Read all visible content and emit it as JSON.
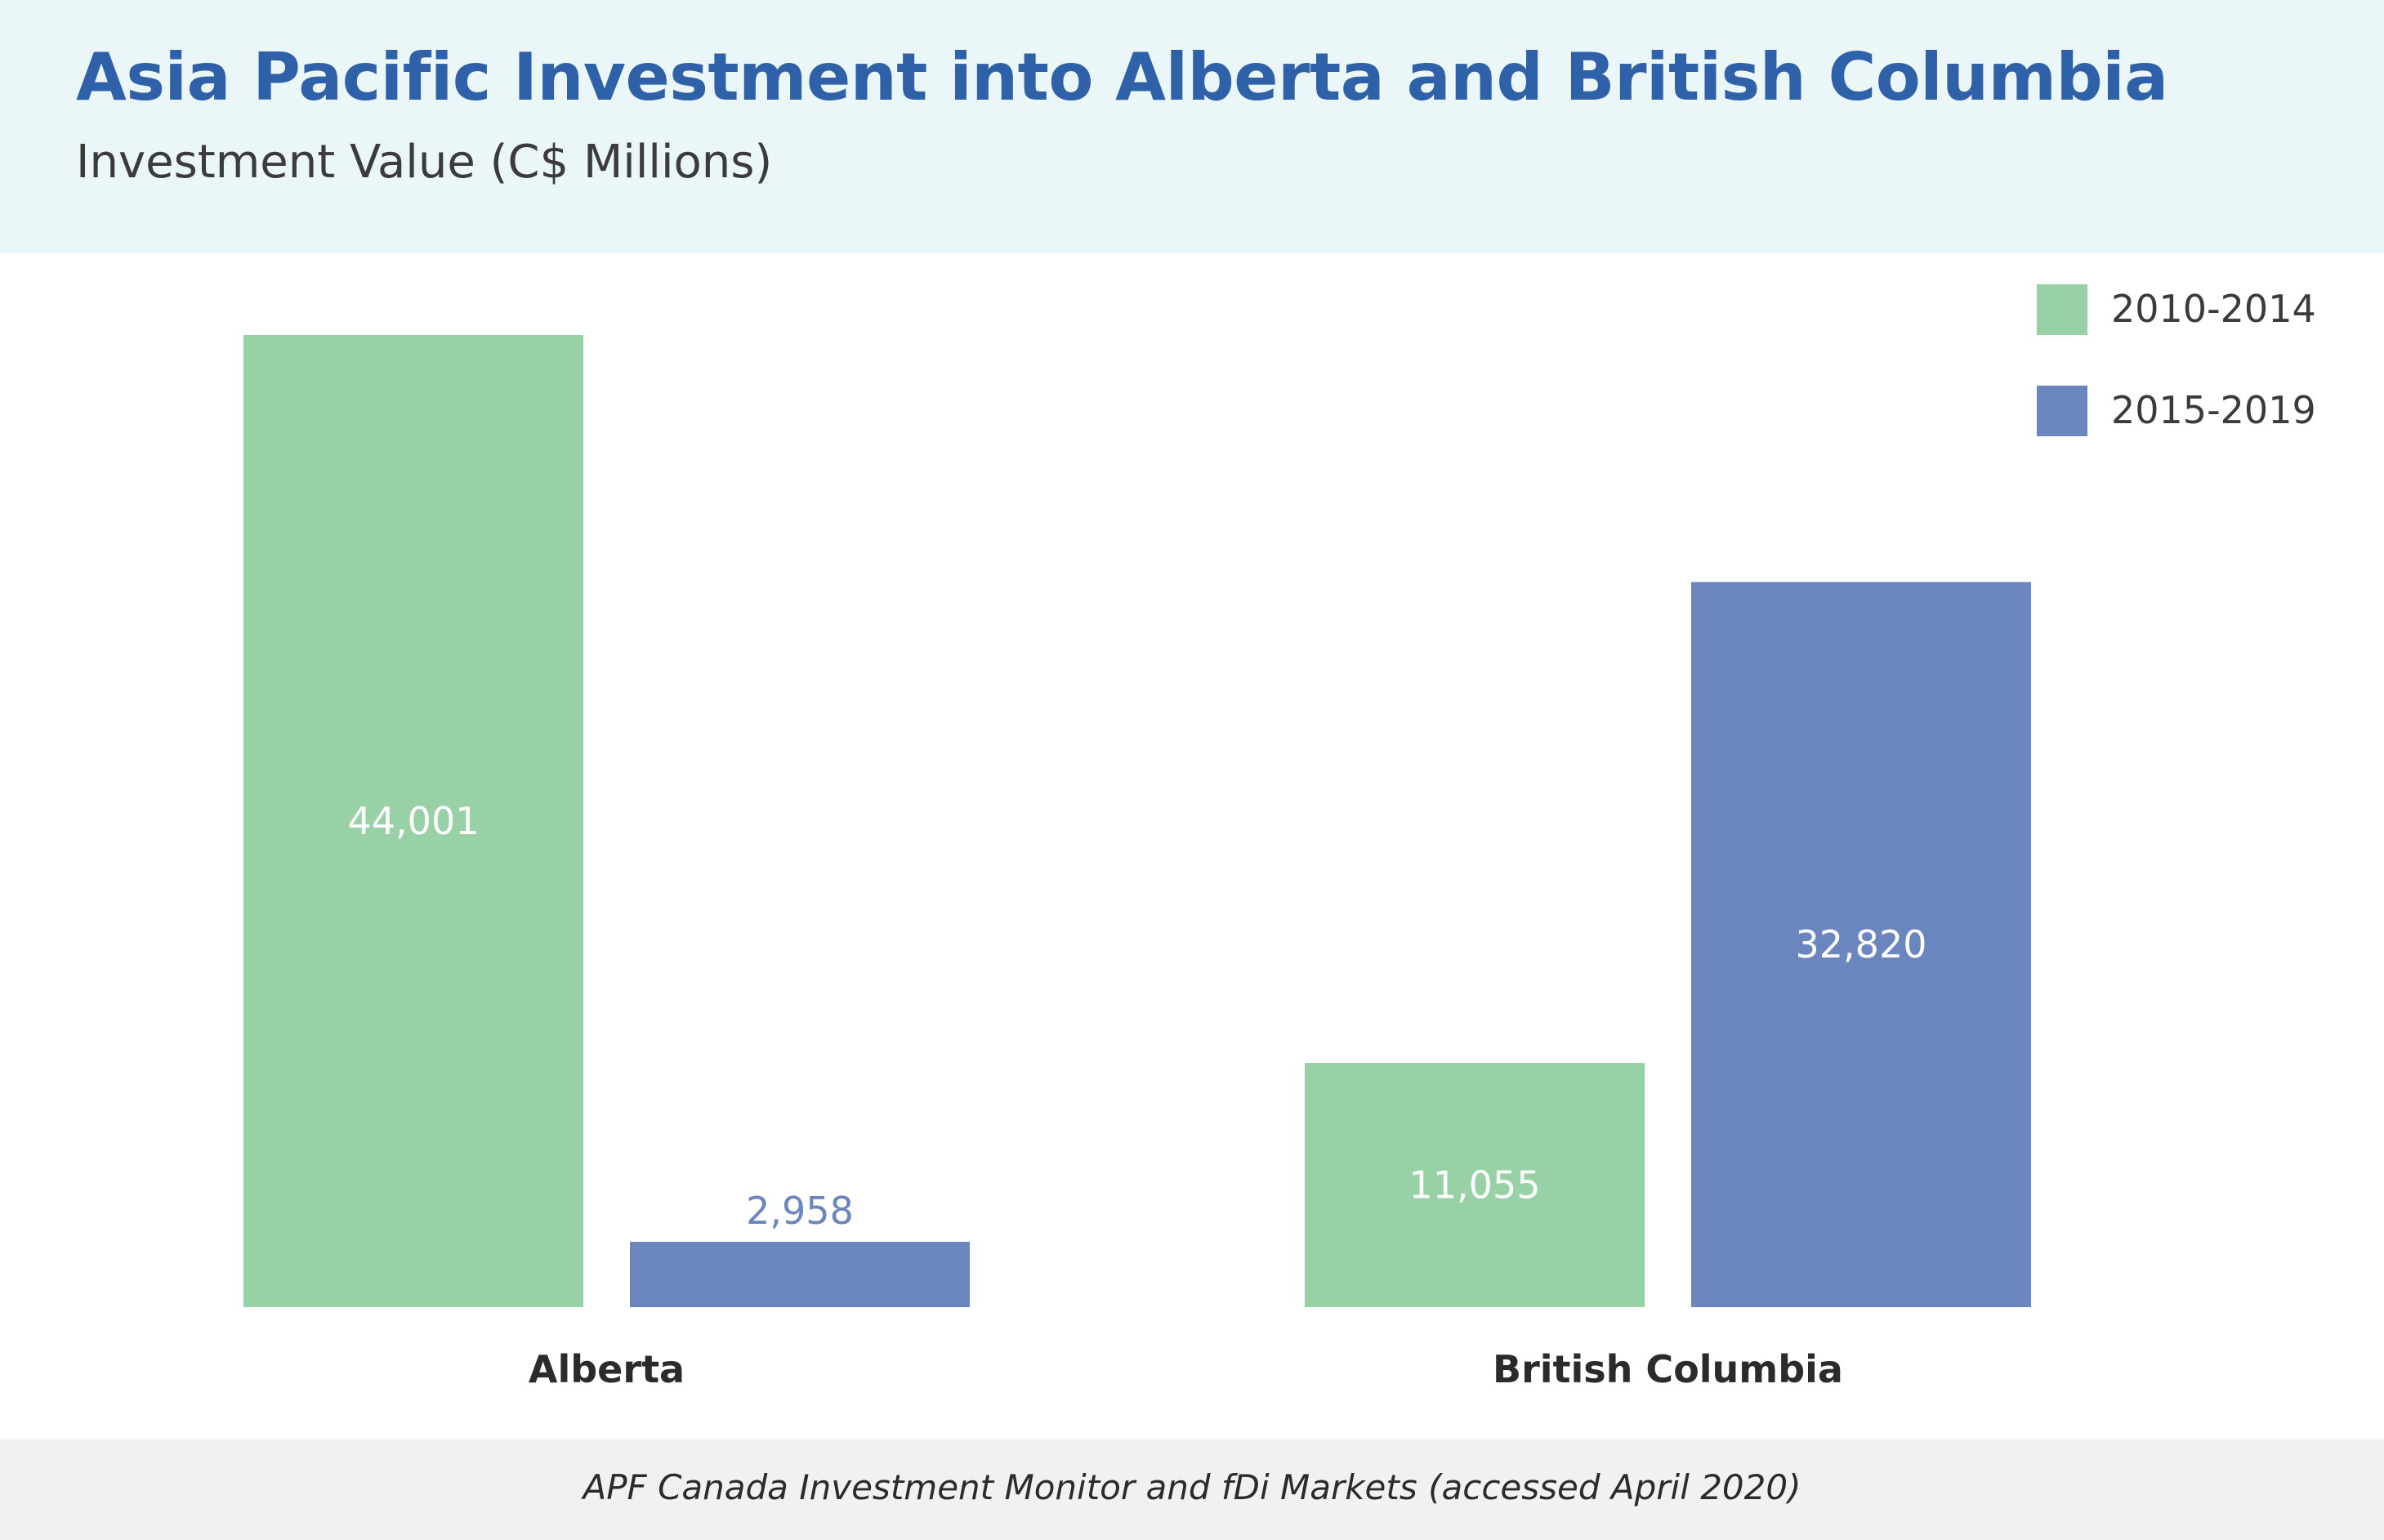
{
  "header": {
    "title": "Asia Pacific Investment into Alberta and British Columbia",
    "subtitle": "Investment Value (C$ Millions)"
  },
  "colors": {
    "title": "#2e61a8",
    "header_bg": "#eaf6f8",
    "series_2010_2014": "#99d1a7",
    "series_2015_2019": "#6b86bf",
    "inside_label": "#ffffff",
    "category_label": "#2b2b2b",
    "footer_bg": "#f1f1f1"
  },
  "chart_data": {
    "type": "bar",
    "title": "Asia Pacific Investment into Alberta and British Columbia",
    "subtitle": "Investment Value (C$ Millions)",
    "categories": [
      "Alberta",
      "British Columbia"
    ],
    "series": [
      {
        "name": "2010-2014",
        "values": [
          44001,
          11055
        ],
        "labels": [
          "44,001",
          "11,055"
        ],
        "color": "#99d1a7"
      },
      {
        "name": "2015-2019",
        "values": [
          2958,
          32820
        ],
        "labels": [
          "2,958",
          "32,820"
        ],
        "color": "#6b86bf"
      }
    ],
    "ylim": [
      0,
      44001
    ],
    "grid": false,
    "legend": "top-right",
    "xlabel": "",
    "ylabel": ""
  },
  "footer": {
    "source": "APF Canada Investment Monitor and fDi Markets (accessed April 2020)"
  }
}
